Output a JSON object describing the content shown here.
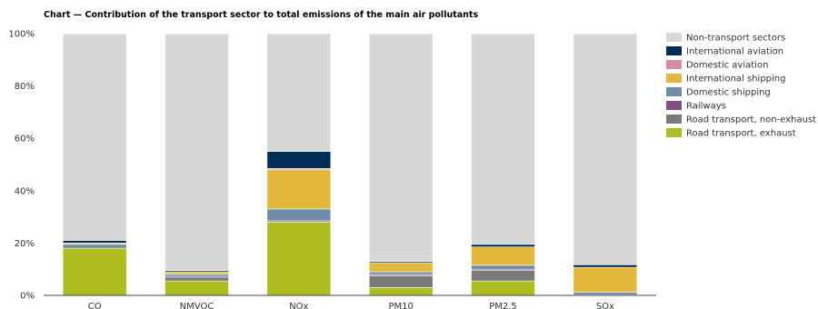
{
  "chart_data": {
    "type": "bar",
    "stacked": true,
    "title": "Chart — Contribution of the transport sector to total emissions of the main air pollutants",
    "categories": [
      "CO",
      "NMVOC",
      "NOx",
      "PM10",
      "PM2.5",
      "SOx"
    ],
    "ylim": [
      0,
      100
    ],
    "yticks": [
      0,
      20,
      40,
      60,
      80,
      100
    ],
    "ytick_labels": [
      "0%",
      "20%",
      "40%",
      "60%",
      "80%",
      "100%"
    ],
    "legend_position": "right",
    "grid": false,
    "series": [
      {
        "name": "Road transport, exhaust",
        "color": "#aebd1f",
        "values": [
          18.0,
          5.5,
          28.0,
          3.0,
          5.5,
          0.2
        ]
      },
      {
        "name": "Road transport, non-exhaust",
        "color": "#7a7a7a",
        "values": [
          0.0,
          1.5,
          0.0,
          4.5,
          4.0,
          0.0
        ]
      },
      {
        "name": "Railways",
        "color": "#864d86",
        "values": [
          0.0,
          0.0,
          0.5,
          0.5,
          0.5,
          0.0
        ]
      },
      {
        "name": "Domestic shipping",
        "color": "#6f8ca7",
        "values": [
          1.5,
          1.0,
          4.5,
          1.0,
          1.5,
          1.0
        ]
      },
      {
        "name": "International shipping",
        "color": "#e3b83d",
        "values": [
          0.5,
          1.0,
          15.0,
          3.5,
          7.0,
          9.5
        ]
      },
      {
        "name": "Domestic aviation",
        "color": "#d98aa5",
        "values": [
          0.0,
          0.0,
          0.5,
          0.0,
          0.0,
          0.0
        ]
      },
      {
        "name": "International aviation",
        "color": "#002d56",
        "values": [
          1.0,
          0.5,
          6.5,
          0.5,
          1.0,
          1.0
        ]
      },
      {
        "name": "Non-transport sectors",
        "color": "#d8d8d8",
        "values": [
          79.0,
          90.5,
          45.0,
          87.0,
          80.5,
          88.3
        ]
      }
    ],
    "legend_order": [
      "Non-transport sectors",
      "International aviation",
      "Domestic aviation",
      "International shipping",
      "Domestic shipping",
      "Railways",
      "Road transport, non-exhaust",
      "Road transport, exhaust"
    ]
  }
}
